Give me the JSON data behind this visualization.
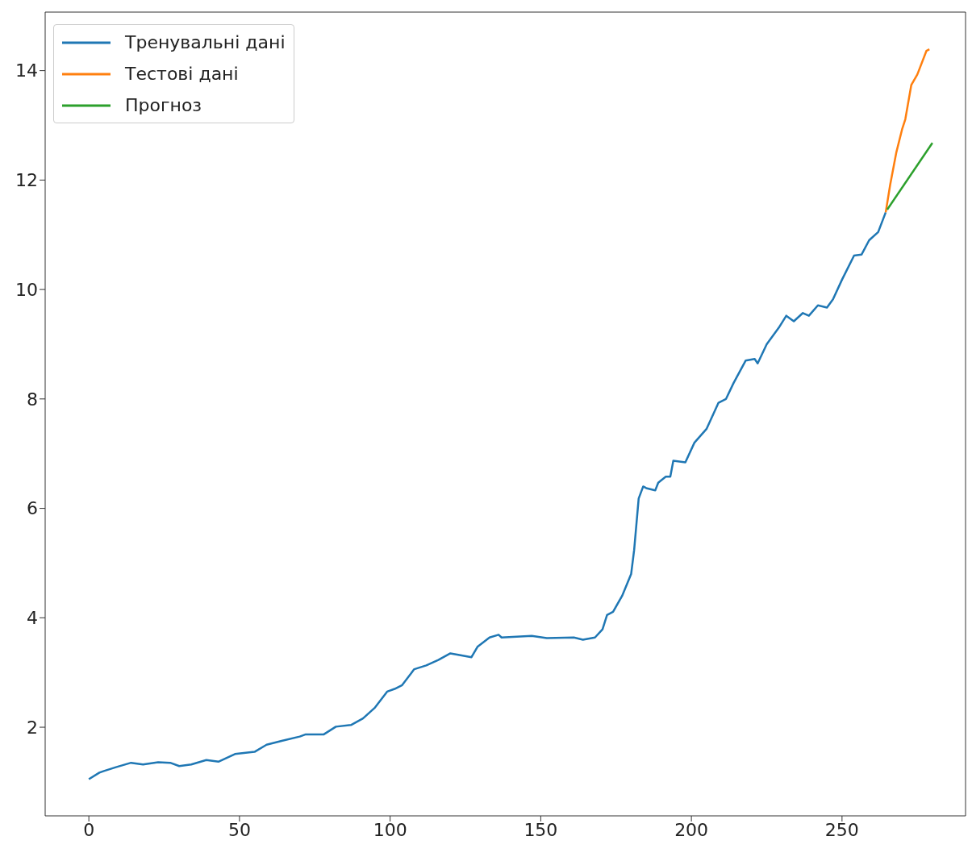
{
  "chart_data": {
    "type": "line",
    "xlim": [
      -14.5,
      291
    ],
    "ylim": [
      0.38,
      15.07
    ],
    "xticks": [
      0,
      50,
      100,
      150,
      200,
      250
    ],
    "yticks": [
      2,
      4,
      6,
      8,
      10,
      12,
      14
    ],
    "grid": false,
    "legend": "top left",
    "line_style": "solid",
    "marker": "none",
    "series": [
      {
        "name": "Тренувальні дані",
        "color": "#1f77b4",
        "x": [
          0,
          3.5,
          5,
          9,
          14,
          18,
          23,
          27,
          30,
          34,
          39,
          43,
          48.5,
          55,
          59,
          64,
          70,
          72,
          78,
          82,
          87,
          91,
          95,
          99,
          101.5,
          104,
          108,
          112,
          116,
          120,
          123,
          127,
          129,
          133,
          136,
          137,
          147,
          152,
          161,
          164,
          168,
          170.5,
          172,
          174,
          177,
          180,
          181,
          182.5,
          184,
          185,
          188,
          189,
          191.5,
          193,
          194,
          198,
          201,
          205,
          209,
          211.5,
          214,
          218,
          221,
          222,
          225,
          229,
          231.5,
          234,
          237,
          239,
          242,
          245,
          247,
          250,
          254,
          256.5,
          259,
          262,
          264.5
        ],
        "values": [
          1.05,
          1.17,
          1.2,
          1.27,
          1.35,
          1.32,
          1.36,
          1.35,
          1.29,
          1.32,
          1.4,
          1.37,
          1.51,
          1.55,
          1.68,
          1.75,
          1.83,
          1.87,
          1.87,
          2.01,
          2.04,
          2.16,
          2.36,
          2.65,
          2.7,
          2.77,
          3.06,
          3.13,
          3.23,
          3.35,
          3.32,
          3.28,
          3.47,
          3.64,
          3.69,
          3.64,
          3.67,
          3.63,
          3.64,
          3.6,
          3.64,
          3.79,
          4.05,
          4.11,
          4.4,
          4.8,
          5.24,
          6.18,
          6.4,
          6.37,
          6.33,
          6.47,
          6.58,
          6.58,
          6.87,
          6.84,
          7.2,
          7.45,
          7.93,
          8.0,
          8.29,
          8.7,
          8.73,
          8.65,
          9.0,
          9.3,
          9.52,
          9.42,
          9.57,
          9.52,
          9.71,
          9.67,
          9.82,
          10.18,
          10.62,
          10.64,
          10.9,
          11.05,
          11.41
        ]
      },
      {
        "name": "Тестові дані",
        "color": "#ff7f0e",
        "x": [
          264.5,
          266,
          268,
          270,
          271,
          273,
          275,
          278,
          279
        ],
        "values": [
          11.41,
          11.92,
          12.5,
          12.94,
          13.11,
          13.74,
          13.93,
          14.36,
          14.39
        ]
      },
      {
        "name": "Прогноз",
        "color": "#2ca02c",
        "x": [
          265,
          280
        ],
        "values": [
          11.46,
          12.68
        ]
      }
    ]
  }
}
